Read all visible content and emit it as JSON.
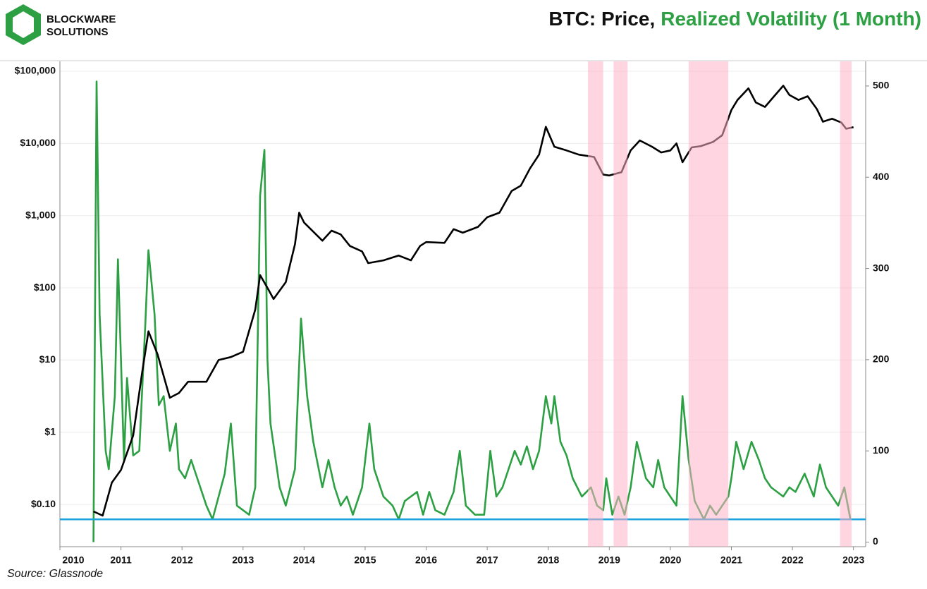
{
  "logo": {
    "line1": "BLOCKWARE",
    "line2": "SOLUTIONS"
  },
  "chart_data": {
    "type": "line",
    "title": "BTC: Price,",
    "title_highlight": "Realized Volatility (1 Month)",
    "source": "Source: Glassnode",
    "xlim": [
      2010,
      2023.2
    ],
    "xticks": [
      2010,
      2011,
      2012,
      2013,
      2014,
      2015,
      2016,
      2017,
      2018,
      2019,
      2020,
      2021,
      2022,
      2023
    ],
    "ylim": [
      0.026,
      137000
    ],
    "ylog": true,
    "yticks": [
      {
        "value": 0.1,
        "label": "$0.10"
      },
      {
        "value": 1,
        "label": "$1"
      },
      {
        "value": 10,
        "label": "$10"
      },
      {
        "value": 100,
        "label": "$100"
      },
      {
        "value": 1000,
        "label": "$1,000"
      },
      {
        "value": 10000,
        "label": "$10,000"
      },
      {
        "value": 100000,
        "label": "$100,000"
      }
    ],
    "y2lim": [
      -5,
      527
    ],
    "y2ticks": [
      0,
      100,
      200,
      300,
      400,
      500
    ],
    "grid": true,
    "shaded_regions": [
      [
        2018.65,
        2018.9
      ],
      [
        2019.07,
        2019.3
      ],
      [
        2020.3,
        2020.95
      ],
      [
        2022.78,
        2022.97
      ]
    ],
    "shade_color": "#ffb3c8",
    "hline": {
      "value": 25,
      "axis": "y2",
      "color": "#1ba3dc"
    },
    "series": [
      {
        "name": "Price",
        "color": "#000000",
        "axis": "y",
        "x": [
          2010.55,
          2010.7,
          2010.85,
          2011.0,
          2011.2,
          2011.35,
          2011.45,
          2011.6,
          2011.8,
          2011.95,
          2012.1,
          2012.4,
          2012.6,
          2012.8,
          2013.0,
          2013.2,
          2013.28,
          2013.4,
          2013.5,
          2013.7,
          2013.85,
          2013.92,
          2014.0,
          2014.15,
          2014.3,
          2014.45,
          2014.6,
          2014.75,
          2014.95,
          2015.05,
          2015.3,
          2015.55,
          2015.75,
          2015.9,
          2016.0,
          2016.3,
          2016.45,
          2016.6,
          2016.85,
          2017.0,
          2017.2,
          2017.4,
          2017.55,
          2017.7,
          2017.85,
          2017.96,
          2018.1,
          2018.3,
          2018.5,
          2018.75,
          2018.9,
          2019.0,
          2019.2,
          2019.35,
          2019.5,
          2019.7,
          2019.85,
          2020.0,
          2020.1,
          2020.2,
          2020.35,
          2020.5,
          2020.7,
          2020.85,
          2021.0,
          2021.1,
          2021.28,
          2021.4,
          2021.55,
          2021.7,
          2021.85,
          2021.95,
          2022.1,
          2022.25,
          2022.4,
          2022.5,
          2022.65,
          2022.8,
          2022.88,
          2023.0
        ],
        "values": [
          0.08,
          0.07,
          0.2,
          0.3,
          0.9,
          7,
          25,
          12,
          3,
          3.5,
          5,
          5,
          10,
          11,
          13,
          50,
          150,
          100,
          70,
          120,
          400,
          1100,
          800,
          600,
          450,
          620,
          550,
          380,
          320,
          220,
          240,
          280,
          240,
          380,
          430,
          420,
          650,
          580,
          700,
          950,
          1100,
          2200,
          2600,
          4500,
          7000,
          17000,
          9000,
          8000,
          7000,
          6500,
          3700,
          3600,
          4000,
          8000,
          11000,
          9000,
          7500,
          8000,
          10000,
          5500,
          8800,
          9200,
          10500,
          13000,
          29000,
          40000,
          58000,
          37000,
          32000,
          45000,
          63000,
          47000,
          40000,
          45000,
          30000,
          20000,
          22000,
          19500,
          16000,
          16800
        ]
      },
      {
        "name": "Realized Volatility (1 Month)",
        "color": "#2ca043",
        "axis": "y2",
        "x": [
          2010.55,
          2010.6,
          2010.65,
          2010.75,
          2010.8,
          2010.9,
          2010.95,
          2011.0,
          2011.05,
          2011.1,
          2011.2,
          2011.3,
          2011.4,
          2011.45,
          2011.55,
          2011.62,
          2011.7,
          2011.8,
          2011.9,
          2011.95,
          2012.05,
          2012.15,
          2012.4,
          2012.5,
          2012.7,
          2012.8,
          2012.9,
          2013.0,
          2013.1,
          2013.2,
          2013.28,
          2013.35,
          2013.4,
          2013.45,
          2013.6,
          2013.7,
          2013.85,
          2013.95,
          2014.05,
          2014.15,
          2014.3,
          2014.4,
          2014.5,
          2014.6,
          2014.7,
          2014.8,
          2014.95,
          2015.07,
          2015.15,
          2015.3,
          2015.45,
          2015.55,
          2015.65,
          2015.85,
          2015.95,
          2016.05,
          2016.15,
          2016.3,
          2016.45,
          2016.55,
          2016.65,
          2016.8,
          2016.95,
          2017.05,
          2017.15,
          2017.25,
          2017.35,
          2017.45,
          2017.55,
          2017.65,
          2017.75,
          2017.85,
          2017.96,
          2018.05,
          2018.1,
          2018.2,
          2018.3,
          2018.4,
          2018.55,
          2018.7,
          2018.8,
          2018.9,
          2018.95,
          2019.05,
          2019.15,
          2019.25,
          2019.35,
          2019.45,
          2019.6,
          2019.72,
          2019.8,
          2019.9,
          2020.0,
          2020.1,
          2020.2,
          2020.3,
          2020.4,
          2020.55,
          2020.65,
          2020.75,
          2020.85,
          2020.95,
          2021.0,
          2021.08,
          2021.2,
          2021.33,
          2021.45,
          2021.55,
          2021.65,
          2021.75,
          2021.85,
          2021.95,
          2022.05,
          2022.2,
          2022.35,
          2022.45,
          2022.55,
          2022.65,
          2022.75,
          2022.85,
          2022.95
        ],
        "values": [
          0,
          505,
          250,
          100,
          80,
          160,
          310,
          200,
          90,
          180,
          95,
          100,
          240,
          320,
          250,
          150,
          160,
          100,
          130,
          80,
          70,
          90,
          40,
          25,
          75,
          130,
          40,
          35,
          30,
          60,
          380,
          430,
          200,
          130,
          60,
          40,
          80,
          245,
          160,
          110,
          60,
          90,
          60,
          40,
          50,
          30,
          60,
          130,
          80,
          50,
          40,
          25,
          45,
          55,
          30,
          55,
          35,
          30,
          55,
          100,
          40,
          30,
          30,
          100,
          50,
          60,
          80,
          100,
          85,
          105,
          80,
          100,
          160,
          130,
          160,
          110,
          95,
          70,
          50,
          60,
          40,
          35,
          70,
          30,
          50,
          30,
          60,
          110,
          70,
          60,
          90,
          60,
          50,
          40,
          160,
          90,
          45,
          25,
          40,
          30,
          40,
          50,
          70,
          110,
          80,
          110,
          90,
          70,
          60,
          55,
          50,
          60,
          55,
          75,
          50,
          85,
          60,
          50,
          40,
          60,
          25
        ]
      }
    ]
  }
}
